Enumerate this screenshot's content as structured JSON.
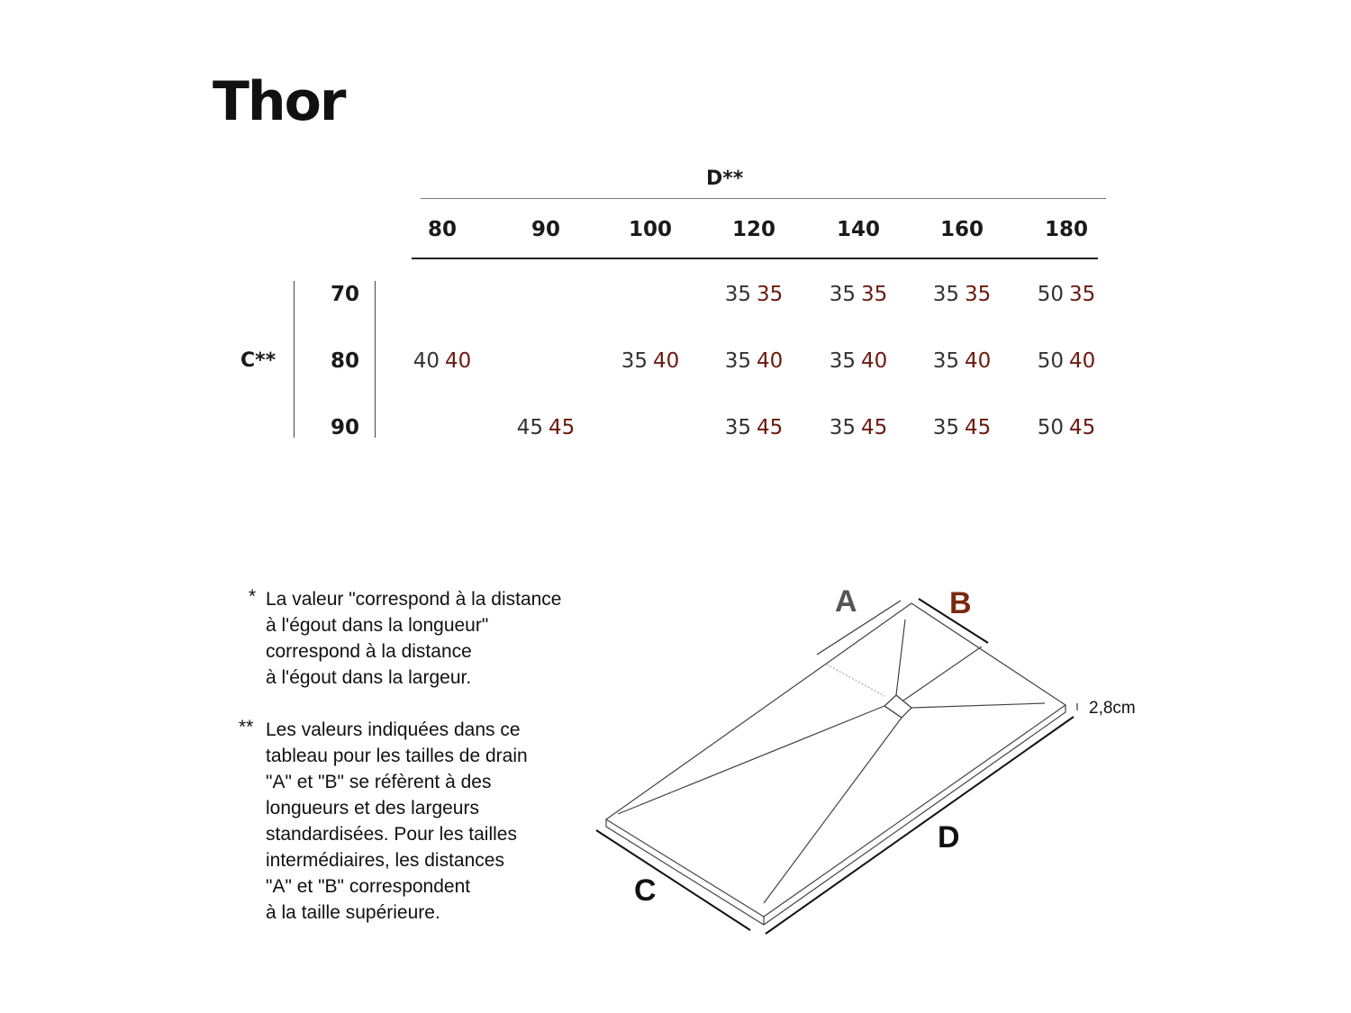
{
  "title": "Thor",
  "table": {
    "column_group_label": "D**",
    "row_group_label": "C**",
    "columns": [
      "80",
      "90",
      "100",
      "120",
      "140",
      "160",
      "180"
    ],
    "rows": [
      {
        "label": "70",
        "cells": [
          null,
          null,
          null,
          [
            "35",
            "35"
          ],
          [
            "35",
            "35"
          ],
          [
            "35",
            "35"
          ],
          [
            "50",
            "35"
          ]
        ]
      },
      {
        "label": "80",
        "cells": [
          [
            "40",
            "40"
          ],
          null,
          [
            "35",
            "40"
          ],
          [
            "35",
            "40"
          ],
          [
            "35",
            "40"
          ],
          [
            "35",
            "40"
          ],
          [
            "50",
            "40"
          ]
        ]
      },
      {
        "label": "90",
        "cells": [
          null,
          [
            "45",
            "45"
          ],
          null,
          [
            "35",
            "45"
          ],
          [
            "35",
            "45"
          ],
          [
            "35",
            "45"
          ],
          [
            "50",
            "45"
          ]
        ]
      }
    ],
    "colors": {
      "a_value": "#333333",
      "b_value": "#6b1a0e"
    }
  },
  "notes": [
    {
      "marker": "*",
      "lines": [
        "La valeur \"correspond à la distance",
        "à l'égout dans la longueur\"",
        "correspond à la distance",
        "à l'égout dans la largeur."
      ]
    },
    {
      "marker": "**",
      "lines": [
        "Les valeurs indiquées dans ce",
        "tableau pour les tailles de drain",
        "\"A\" et \"B\" se réfèrent à des",
        "longueurs et des largeurs",
        "standardisées. Pour les tailles",
        "intermédiaires, les distances",
        "\"A\" et \"B\" correspondent",
        "à la taille supérieure."
      ]
    }
  ],
  "diagram": {
    "labels": {
      "a": "A",
      "b": "B",
      "c": "C",
      "d": "D",
      "thickness": "2,8cm"
    },
    "colors": {
      "a": "#555555",
      "b": "#7a2810",
      "c": "#111111",
      "d": "#111111"
    }
  }
}
